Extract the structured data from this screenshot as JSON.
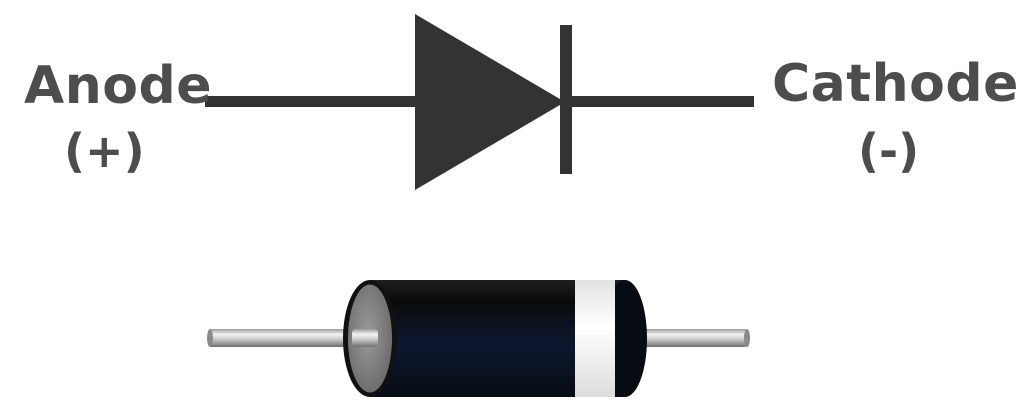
{
  "diagram": {
    "anode": {
      "name": "Anode",
      "polarity": "(+)"
    },
    "cathode": {
      "name": "Cathode",
      "polarity": "(-)"
    }
  },
  "colors": {
    "label_text": "#4d4d4d",
    "symbol_fill": "#333333",
    "diode_body": "#0d1420",
    "cathode_band": "#f0f0f0",
    "lead_metal": "#c8c8c8"
  },
  "icons": {
    "symbol": "diode-schematic-icon",
    "component": "diode-component-icon"
  }
}
